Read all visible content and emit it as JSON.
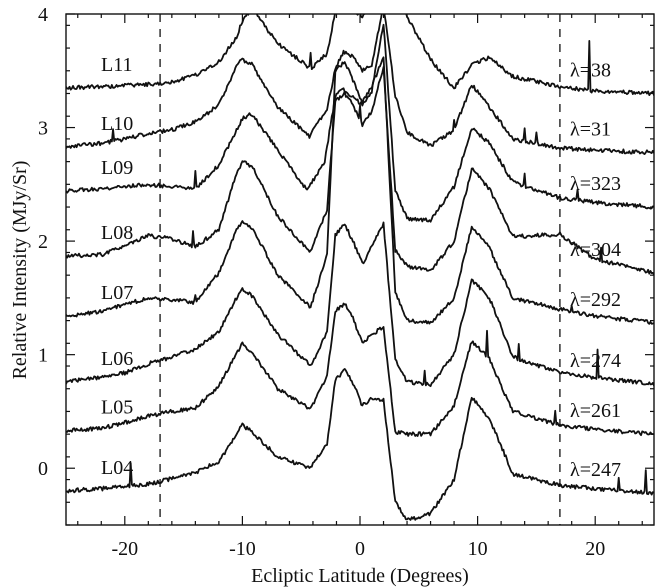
{
  "chart_data": {
    "type": "line",
    "xlabel": "Ecliptic Latitude (Degrees)",
    "ylabel": "Relative Intensity (MJy/Sr)",
    "xlim": [
      -25,
      25
    ],
    "ylim": [
      -0.5,
      4
    ],
    "x_ticks": [
      -20,
      -10,
      0,
      10,
      20
    ],
    "y_ticks": [
      0,
      1,
      2,
      3,
      4
    ],
    "reference_lines_x": [
      -17,
      17
    ],
    "grid": false,
    "legend": "none",
    "series": [
      {
        "name": "L11",
        "lambda_label": "λ=38",
        "x": [
          -25,
          -22,
          -20,
          -18,
          -16,
          -14,
          -12,
          -10.5,
          -10,
          -9.2,
          -7,
          -4.2,
          -2.8,
          -2.1,
          -1.5,
          -0.8,
          0.2,
          1.0,
          2.0,
          4,
          6,
          8,
          9.5,
          11,
          13,
          17,
          20,
          25
        ],
        "y": [
          3.35,
          3.36,
          3.37,
          3.38,
          3.4,
          3.46,
          3.58,
          3.8,
          3.94,
          4.05,
          3.74,
          3.52,
          3.65,
          4.02,
          4.12,
          4.05,
          3.98,
          4.1,
          4.45,
          3.98,
          3.6,
          3.35,
          3.55,
          3.62,
          3.45,
          3.36,
          3.32,
          3.3
        ],
        "spikes": [
          [
            -4.2,
            0.15
          ],
          [
            19.5,
            0.42
          ]
        ]
      },
      {
        "name": "L10",
        "lambda_label": "λ=31",
        "x": [
          -25,
          -22,
          -20,
          -18,
          -16,
          -14,
          -12,
          -10.5,
          -10,
          -9.2,
          -7,
          -4.3,
          -2.8,
          -2.1,
          -1.4,
          -0.6,
          0.2,
          1.0,
          2.0,
          3.0,
          4.0,
          6,
          8,
          9.5,
          11,
          13,
          17,
          20,
          25
        ],
        "y": [
          2.83,
          2.86,
          2.9,
          2.95,
          2.98,
          3.05,
          3.2,
          3.54,
          3.6,
          3.56,
          3.18,
          2.92,
          3.16,
          3.52,
          3.66,
          3.63,
          3.5,
          3.55,
          4.08,
          3.28,
          2.96,
          2.84,
          2.98,
          3.38,
          3.18,
          2.9,
          2.82,
          2.8,
          2.78
        ],
        "spikes": [
          [
            -21,
            0.12
          ],
          [
            8,
            0.1
          ],
          [
            14,
            0.1
          ],
          [
            15,
            0.08
          ]
        ]
      },
      {
        "name": "L09",
        "lambda_label": "λ=323",
        "x": [
          -25,
          -22,
          -20,
          -18,
          -16,
          -14,
          -12,
          -10.5,
          -10,
          -9.2,
          -7,
          -4.5,
          -3.0,
          -2.1,
          -1.5,
          -0.8,
          0.2,
          1.0,
          2.0,
          3.0,
          4.0,
          6,
          8,
          9.5,
          11,
          13,
          17,
          20,
          25
        ],
        "y": [
          2.44,
          2.46,
          2.48,
          2.5,
          2.48,
          2.46,
          2.67,
          2.98,
          3.08,
          3.12,
          2.8,
          2.45,
          2.7,
          3.28,
          3.35,
          3.28,
          3.2,
          3.32,
          3.92,
          2.44,
          2.2,
          2.18,
          2.48,
          3.0,
          2.86,
          2.52,
          2.38,
          2.34,
          2.3
        ],
        "spikes": [
          [
            -14,
            0.16
          ],
          [
            14,
            0.12
          ],
          [
            18.5,
            0.08
          ]
        ]
      },
      {
        "name": "L08",
        "lambda_label": "λ=304",
        "x": [
          -25,
          -22,
          -20,
          -18,
          -16,
          -14,
          -12,
          -10.5,
          -10,
          -9.2,
          -7,
          -4.2,
          -2.8,
          -2.1,
          -1.3,
          -0.6,
          0.2,
          1.0,
          2.0,
          3.0,
          4.0,
          6,
          8,
          9.5,
          11,
          13,
          17,
          20,
          25
        ],
        "y": [
          1.87,
          1.88,
          1.96,
          2.05,
          2.02,
          1.95,
          2.1,
          2.6,
          2.7,
          2.66,
          2.22,
          1.9,
          2.28,
          3.24,
          3.3,
          3.2,
          3.02,
          3.14,
          3.54,
          1.92,
          1.78,
          1.74,
          2.0,
          2.64,
          2.46,
          2.04,
          2.06,
          1.84,
          1.72
        ],
        "spikes": [
          [
            -14.2,
            0.14
          ],
          [
            0,
            0.12
          ],
          [
            20.5,
            0.12
          ]
        ]
      },
      {
        "name": "L07",
        "lambda_label": "λ=292",
        "x": [
          -25,
          -22,
          -20,
          -18,
          -16,
          -14,
          -12,
          -10.5,
          -10,
          -9.2,
          -7,
          -4.2,
          -2.8,
          -2.1,
          -1.3,
          -0.6,
          0.2,
          1.0,
          2.0,
          3.0,
          4.0,
          6,
          8,
          9.5,
          11,
          13,
          17,
          20,
          25
        ],
        "y": [
          1.34,
          1.38,
          1.44,
          1.5,
          1.48,
          1.46,
          1.72,
          2.1,
          2.16,
          2.12,
          1.7,
          1.42,
          1.88,
          3.5,
          3.58,
          3.42,
          3.22,
          3.36,
          3.62,
          1.56,
          1.3,
          1.28,
          1.5,
          2.13,
          1.94,
          1.5,
          1.4,
          1.34,
          1.28
        ],
        "spikes": [
          [
            -14,
            0.08
          ],
          [
            18,
            0.06
          ]
        ]
      },
      {
        "name": "L06",
        "lambda_label": "λ=274",
        "x": [
          -25,
          -22,
          -20,
          -18,
          -16,
          -14,
          -12,
          -10.5,
          -10,
          -9.2,
          -7,
          -4.2,
          -2.8,
          -2.1,
          -1.3,
          -0.6,
          0.2,
          1.0,
          2.0,
          3.0,
          4.0,
          6,
          8,
          9.5,
          11,
          13,
          17,
          20,
          25
        ],
        "y": [
          0.76,
          0.8,
          0.84,
          0.92,
          0.98,
          1.05,
          1.2,
          1.5,
          1.58,
          1.52,
          1.18,
          0.9,
          1.2,
          2.05,
          2.15,
          2.0,
          1.8,
          1.95,
          2.15,
          0.95,
          0.76,
          0.74,
          1.0,
          1.66,
          1.5,
          0.98,
          0.84,
          0.8,
          0.74
        ],
        "spikes": [
          [
            5.5,
            0.1
          ],
          [
            13.5,
            0.12
          ],
          [
            20.2,
            0.24
          ]
        ]
      },
      {
        "name": "L05",
        "lambda_label": "λ=261",
        "x": [
          -25,
          -22,
          -20,
          -18,
          -16,
          -14,
          -12,
          -10.5,
          -10,
          -9.2,
          -7,
          -4.2,
          -2.8,
          -2.1,
          -1.3,
          -0.6,
          0.2,
          1.0,
          2.0,
          3.0,
          4.0,
          6,
          8,
          9.5,
          11,
          13,
          17,
          20,
          25
        ],
        "y": [
          0.33,
          0.35,
          0.4,
          0.46,
          0.5,
          0.53,
          0.72,
          1.01,
          1.1,
          1.02,
          0.7,
          0.52,
          0.82,
          1.38,
          1.45,
          1.32,
          1.1,
          1.18,
          1.24,
          0.32,
          0.3,
          0.3,
          0.55,
          1.12,
          0.96,
          0.5,
          0.38,
          0.34,
          0.3
        ],
        "spikes": [
          [
            10.8,
            0.24
          ],
          [
            16.6,
            0.12
          ]
        ]
      },
      {
        "name": "L04",
        "lambda_label": "λ=247",
        "x": [
          -25,
          -22,
          -20,
          -18,
          -16,
          -14,
          -12,
          -10.5,
          -10,
          -9.2,
          -7,
          -4.2,
          -2.8,
          -2.1,
          -1.3,
          -0.6,
          0.2,
          1.0,
          2.0,
          3.0,
          4.0,
          6,
          8,
          9.5,
          11,
          13,
          17,
          20,
          25
        ],
        "y": [
          -0.2,
          -0.18,
          -0.16,
          -0.14,
          -0.09,
          -0.04,
          0.06,
          0.3,
          0.38,
          0.32,
          0.1,
          0.0,
          0.22,
          0.78,
          0.86,
          0.75,
          0.55,
          0.62,
          0.6,
          -0.3,
          -0.46,
          -0.4,
          -0.1,
          0.63,
          0.44,
          -0.05,
          -0.15,
          -0.18,
          -0.22
        ],
        "spikes": [
          [
            -19.5,
            0.2
          ],
          [
            22,
            0.12
          ],
          [
            24.3,
            0.2
          ]
        ]
      }
    ]
  }
}
